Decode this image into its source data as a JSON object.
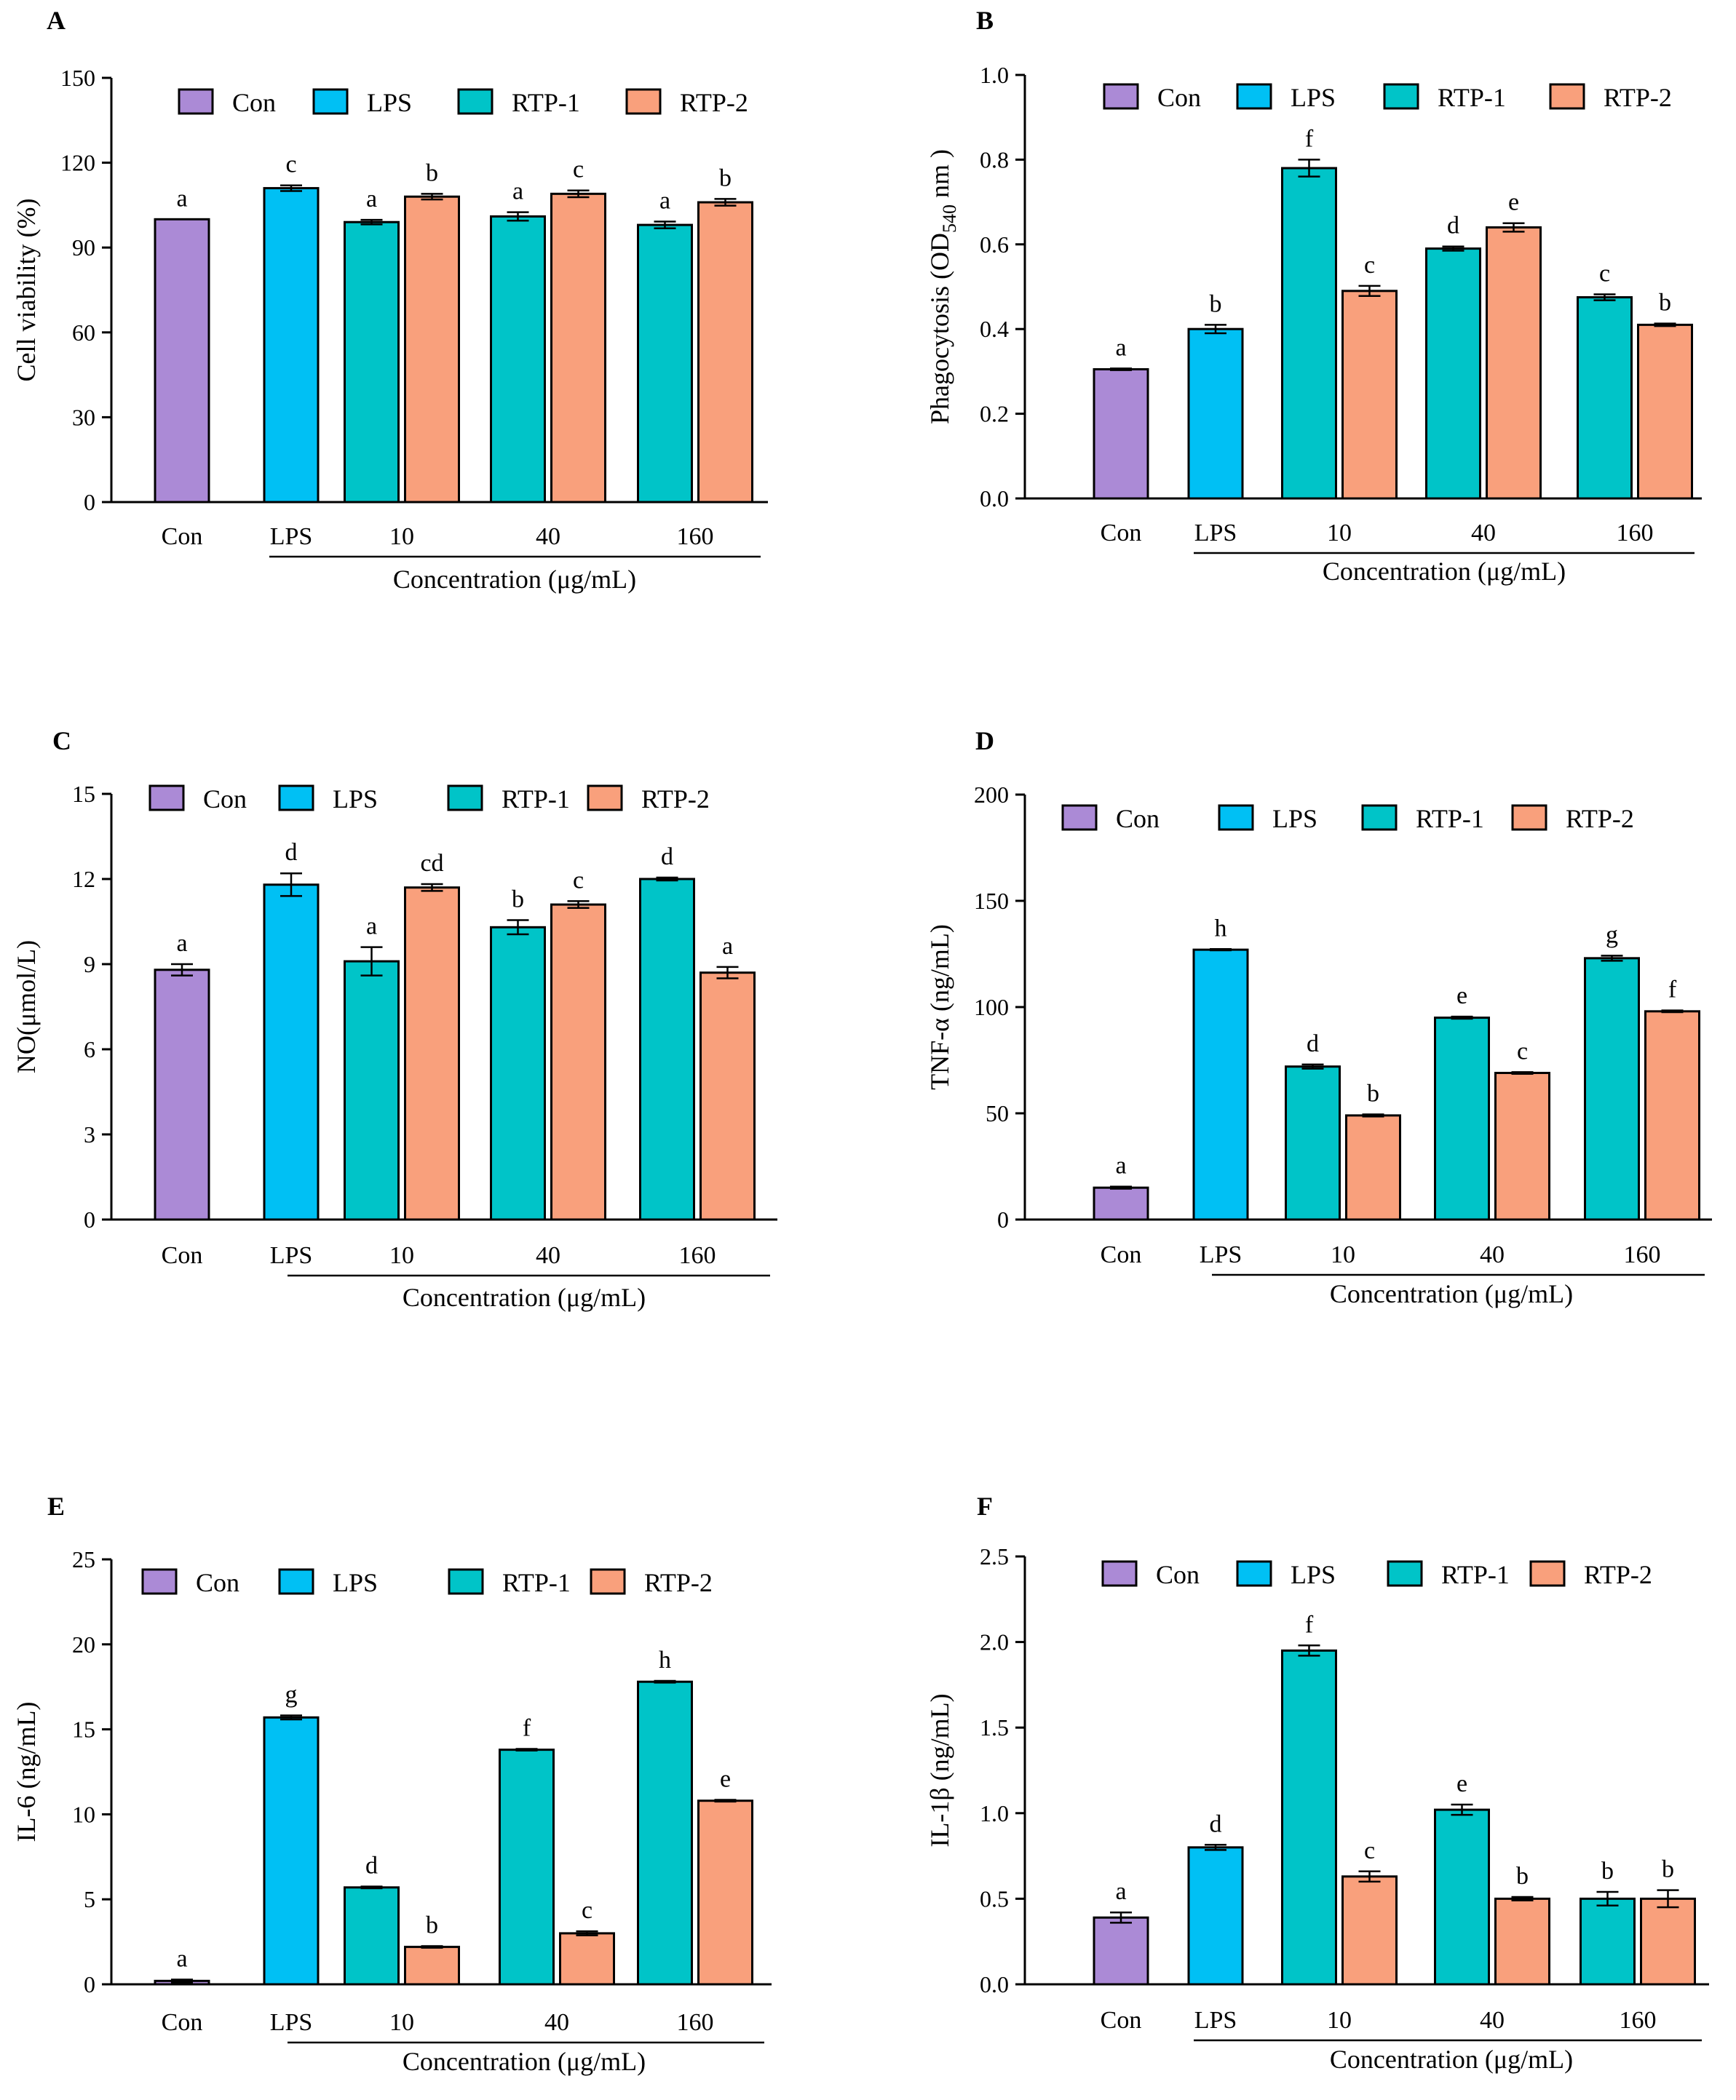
{
  "colors": {
    "Con": "#ab8ad6",
    "LPS": "#00c0f4",
    "RTP-1": "#00c4c8",
    "RTP-2": "#f9a07c",
    "stroke": "#000000"
  },
  "legend": [
    "Con",
    "LPS",
    "RTP-1",
    "RTP-2"
  ],
  "categories": [
    "Con",
    "LPS",
    "10",
    "40",
    "160"
  ],
  "group_axis_title": "Concentration (μg/mL)",
  "chart_data": [
    {
      "panel": "A",
      "type": "bar",
      "ylabel": "Cell viability (%)",
      "ylim": [
        0,
        150
      ],
      "yticks": [
        0,
        30,
        60,
        90,
        120,
        150
      ],
      "ytick_labels": [
        "0",
        "30",
        "60",
        "90",
        "120",
        "150"
      ],
      "bars": [
        {
          "category": "Con",
          "series": "Con",
          "value": 100,
          "err": 0,
          "sig": "a"
        },
        {
          "category": "LPS",
          "series": "LPS",
          "value": 111,
          "err": 1.0,
          "sig": "c"
        },
        {
          "category": "10",
          "series": "RTP-1",
          "value": 99,
          "err": 0.8,
          "sig": "a"
        },
        {
          "category": "10",
          "series": "RTP-2",
          "value": 108,
          "err": 1.0,
          "sig": "b"
        },
        {
          "category": "40",
          "series": "RTP-1",
          "value": 101,
          "err": 1.5,
          "sig": "a"
        },
        {
          "category": "40",
          "series": "RTP-2",
          "value": 109,
          "err": 1.2,
          "sig": "c"
        },
        {
          "category": "160",
          "series": "RTP-1",
          "value": 98,
          "err": 1.2,
          "sig": "a"
        },
        {
          "category": "160",
          "series": "RTP-2",
          "value": 106,
          "err": 1.2,
          "sig": "b"
        }
      ]
    },
    {
      "panel": "B",
      "type": "bar",
      "ylabel_main": "Phagocytosis (OD",
      "ylabel_sub": "540",
      "ylabel_end": " nm )",
      "ylim": [
        0,
        1.0
      ],
      "yticks": [
        0,
        0.2,
        0.4,
        0.6,
        0.8,
        1.0
      ],
      "ytick_labels": [
        "0.0",
        "0.2",
        "0.4",
        "0.6",
        "0.8",
        "1.0"
      ],
      "bars": [
        {
          "category": "Con",
          "series": "Con",
          "value": 0.305,
          "err": 0.002,
          "sig": "a"
        },
        {
          "category": "LPS",
          "series": "LPS",
          "value": 0.4,
          "err": 0.01,
          "sig": "b"
        },
        {
          "category": "10",
          "series": "RTP-1",
          "value": 0.78,
          "err": 0.02,
          "sig": "f"
        },
        {
          "category": "10",
          "series": "RTP-2",
          "value": 0.49,
          "err": 0.012,
          "sig": "c"
        },
        {
          "category": "40",
          "series": "RTP-1",
          "value": 0.59,
          "err": 0.005,
          "sig": "d"
        },
        {
          "category": "40",
          "series": "RTP-2",
          "value": 0.64,
          "err": 0.01,
          "sig": "e"
        },
        {
          "category": "160",
          "series": "RTP-1",
          "value": 0.475,
          "err": 0.007,
          "sig": "c"
        },
        {
          "category": "160",
          "series": "RTP-2",
          "value": 0.41,
          "err": 0.003,
          "sig": "b"
        }
      ]
    },
    {
      "panel": "C",
      "type": "bar",
      "ylabel": "NO(μmol/L)",
      "ylim": [
        0,
        15
      ],
      "yticks": [
        0,
        3,
        6,
        9,
        12,
        15
      ],
      "ytick_labels": [
        "0",
        "3",
        "6",
        "9",
        "12",
        "15"
      ],
      "bars": [
        {
          "category": "Con",
          "series": "Con",
          "value": 8.8,
          "err": 0.2,
          "sig": "a"
        },
        {
          "category": "LPS",
          "series": "LPS",
          "value": 11.8,
          "err": 0.4,
          "sig": "d"
        },
        {
          "category": "10",
          "series": "RTP-1",
          "value": 9.1,
          "err": 0.5,
          "sig": "a"
        },
        {
          "category": "10",
          "series": "RTP-2",
          "value": 11.7,
          "err": 0.12,
          "sig": "cd"
        },
        {
          "category": "40",
          "series": "RTP-1",
          "value": 10.3,
          "err": 0.25,
          "sig": "b"
        },
        {
          "category": "40",
          "series": "RTP-2",
          "value": 11.1,
          "err": 0.12,
          "sig": "c"
        },
        {
          "category": "160",
          "series": "RTP-1",
          "value": 12.0,
          "err": 0.05,
          "sig": "d"
        },
        {
          "category": "160",
          "series": "RTP-2",
          "value": 8.7,
          "err": 0.2,
          "sig": "a"
        }
      ]
    },
    {
      "panel": "D",
      "type": "bar",
      "ylabel": "TNF-α (ng/mL)",
      "ylim": [
        0,
        200
      ],
      "yticks": [
        0,
        50,
        100,
        150,
        200
      ],
      "ytick_labels": [
        "0",
        "50",
        "100",
        "150",
        "200"
      ],
      "bars": [
        {
          "category": "Con",
          "series": "Con",
          "value": 15,
          "err": 0.5,
          "sig": "a"
        },
        {
          "category": "LPS",
          "series": "LPS",
          "value": 127,
          "err": 0.3,
          "sig": "h"
        },
        {
          "category": "10",
          "series": "RTP-1",
          "value": 72,
          "err": 1.0,
          "sig": "d"
        },
        {
          "category": "10",
          "series": "RTP-2",
          "value": 49,
          "err": 0.5,
          "sig": "b"
        },
        {
          "category": "40",
          "series": "RTP-1",
          "value": 95,
          "err": 0.5,
          "sig": "e"
        },
        {
          "category": "40",
          "series": "RTP-2",
          "value": 69,
          "err": 0.4,
          "sig": "c"
        },
        {
          "category": "160",
          "series": "RTP-1",
          "value": 123,
          "err": 1.2,
          "sig": "g"
        },
        {
          "category": "160",
          "series": "RTP-2",
          "value": 98,
          "err": 0.4,
          "sig": "f"
        }
      ]
    },
    {
      "panel": "E",
      "type": "bar",
      "ylabel": "IL-6 (ng/mL)",
      "ylim": [
        0,
        25
      ],
      "yticks": [
        0,
        5,
        10,
        15,
        20,
        25
      ],
      "ytick_labels": [
        "0",
        "5",
        "10",
        "15",
        "20",
        "25"
      ],
      "bars": [
        {
          "category": "Con",
          "series": "Con",
          "value": 0.2,
          "err": 0.08,
          "sig": "a"
        },
        {
          "category": "LPS",
          "series": "LPS",
          "value": 15.7,
          "err": 0.12,
          "sig": "g"
        },
        {
          "category": "10",
          "series": "RTP-1",
          "value": 5.7,
          "err": 0.05,
          "sig": "d"
        },
        {
          "category": "10",
          "series": "RTP-2",
          "value": 2.2,
          "err": 0.05,
          "sig": "b"
        },
        {
          "category": "40",
          "series": "RTP-1",
          "value": 13.8,
          "err": 0.05,
          "sig": "f"
        },
        {
          "category": "40",
          "series": "RTP-2",
          "value": 3.0,
          "err": 0.12,
          "sig": "c"
        },
        {
          "category": "160",
          "series": "RTP-1",
          "value": 17.8,
          "err": 0.05,
          "sig": "h"
        },
        {
          "category": "160",
          "series": "RTP-2",
          "value": 10.8,
          "err": 0.05,
          "sig": "e"
        }
      ]
    },
    {
      "panel": "F",
      "type": "bar",
      "ylabel": "IL-1β (ng/mL)",
      "ylim": [
        0,
        2.5
      ],
      "yticks": [
        0,
        0.5,
        1.0,
        1.5,
        2.0,
        2.5
      ],
      "ytick_labels": [
        "0.0",
        "0.5",
        "1.0",
        "1.5",
        "2.0",
        "2.5"
      ],
      "bars": [
        {
          "category": "Con",
          "series": "Con",
          "value": 0.39,
          "err": 0.03,
          "sig": "a"
        },
        {
          "category": "LPS",
          "series": "LPS",
          "value": 0.8,
          "err": 0.015,
          "sig": "d"
        },
        {
          "category": "10",
          "series": "RTP-1",
          "value": 1.95,
          "err": 0.03,
          "sig": "f"
        },
        {
          "category": "10",
          "series": "RTP-2",
          "value": 0.63,
          "err": 0.03,
          "sig": "c"
        },
        {
          "category": "40",
          "series": "RTP-1",
          "value": 1.02,
          "err": 0.03,
          "sig": "e"
        },
        {
          "category": "40",
          "series": "RTP-2",
          "value": 0.5,
          "err": 0.01,
          "sig": "b"
        },
        {
          "category": "160",
          "series": "RTP-1",
          "value": 0.5,
          "err": 0.04,
          "sig": "b"
        },
        {
          "category": "160",
          "series": "RTP-2",
          "value": 0.5,
          "err": 0.05,
          "sig": "b"
        }
      ]
    }
  ]
}
